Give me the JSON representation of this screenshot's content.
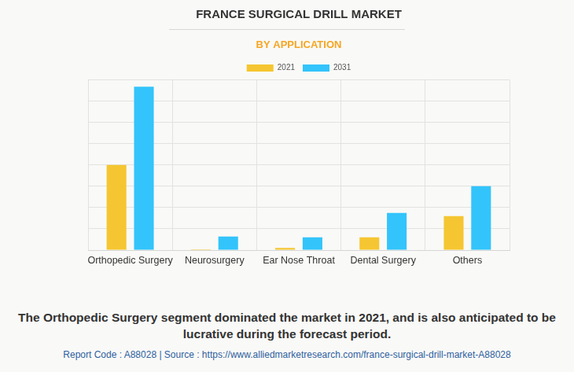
{
  "chart_data": {
    "type": "bar",
    "title": "FRANCE SURGICAL DRILL MARKET",
    "subtitle": "BY APPLICATION",
    "categories": [
      "Orthopedic Surgery",
      "Neurosurgery",
      "Ear Nose Throat",
      "Dental Surgery",
      "Others"
    ],
    "series": [
      {
        "name": "2021",
        "color": "#f5c631",
        "values": [
          4.0,
          0.04,
          0.1,
          0.6,
          1.6
        ]
      },
      {
        "name": "2031",
        "color": "#33c4fb",
        "values": [
          7.68,
          0.64,
          0.6,
          1.75,
          3.0
        ]
      }
    ],
    "ylim": [
      0,
      8
    ],
    "yticks": [
      0,
      1,
      2,
      3,
      4,
      5,
      6,
      7,
      8
    ],
    "grid": true,
    "legend": "top",
    "tick_labels": "x",
    "footnote": "The Orthopedic Surgery segment dominated the market in 2021, and is also anticipated to be lucrative during the forecast period.",
    "source": "Report Code : A88028  |  Source : https://www.alliedmarketresearch.com/france-surgical-drill-market-A88028"
  }
}
